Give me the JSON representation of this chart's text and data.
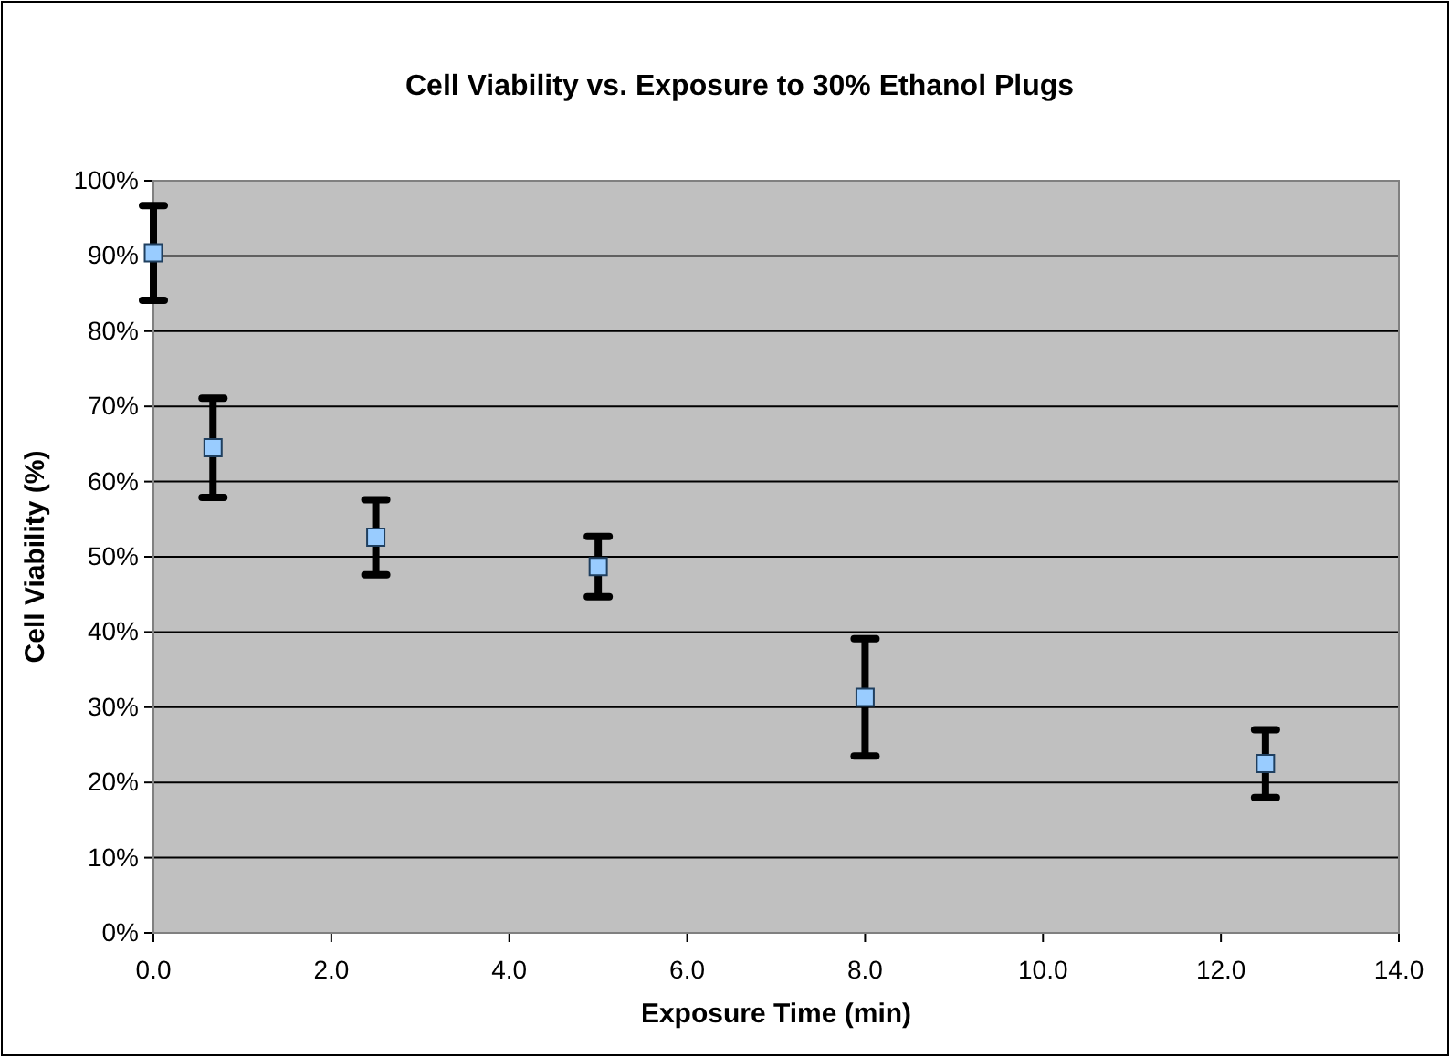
{
  "chart_data": {
    "type": "scatter",
    "title": "Cell Viability vs. Exposure to 30% Ethanol Plugs",
    "xlabel": "Exposure Time (min)",
    "ylabel": "Cell Viability (%)",
    "x": [
      0,
      0.67,
      2.5,
      5,
      8,
      12.5
    ],
    "series": [
      {
        "color": "#99ccff",
        "values": [
          90.4,
          64.5,
          52.6,
          48.7,
          31.3,
          22.5
        ],
        "errors": [
          6.3,
          6.6,
          5,
          4,
          7.8,
          4.5
        ]
      }
    ],
    "xlim": [
      0,
      14
    ],
    "xticks": [
      {
        "value": 0,
        "label": "0.0"
      },
      {
        "value": 2,
        "label": "2.0"
      },
      {
        "value": 4,
        "label": "4.0"
      },
      {
        "value": 6,
        "label": "6.0"
      },
      {
        "value": 8,
        "label": "8.0"
      },
      {
        "value": 10,
        "label": "10.0"
      },
      {
        "value": 12,
        "label": "12.0"
      },
      {
        "value": 14,
        "label": "14.0"
      }
    ],
    "ylim": [
      0,
      100
    ],
    "yticks": [
      {
        "value": 0,
        "label": "0%"
      },
      {
        "value": 10,
        "label": "10%"
      },
      {
        "value": 20,
        "label": "20%"
      },
      {
        "value": 30,
        "label": "30%"
      },
      {
        "value": 40,
        "label": "40%"
      },
      {
        "value": 50,
        "label": "50%"
      },
      {
        "value": 60,
        "label": "60%"
      },
      {
        "value": 70,
        "label": "70%"
      },
      {
        "value": 80,
        "label": "80%"
      },
      {
        "value": 90,
        "label": "90%"
      },
      {
        "value": 100,
        "label": "100%"
      }
    ],
    "grid": "y",
    "marker": "square"
  }
}
